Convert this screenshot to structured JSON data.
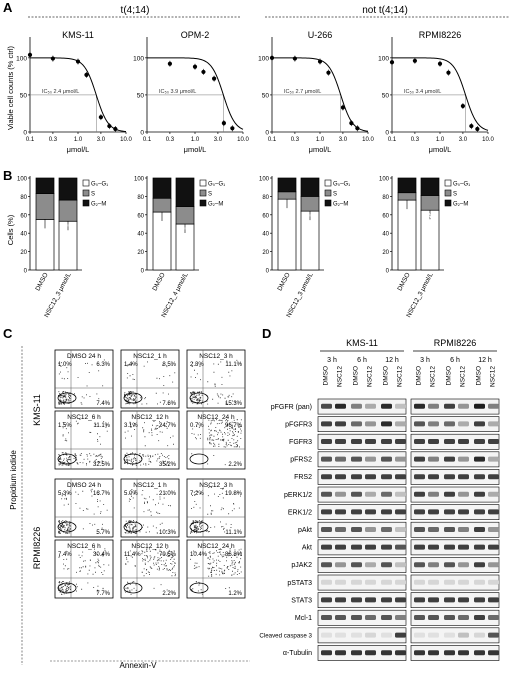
{
  "panel_letters": [
    "A",
    "B",
    "C",
    "D"
  ],
  "group_headers": {
    "left": "t(4;14)",
    "right": "not t(4;14)"
  },
  "panelA": {
    "ylabel": "Viable cell counts (% ctrl)",
    "xlabel": "μmol/L",
    "yticks": [
      "0",
      "50",
      "100"
    ],
    "xticks": [
      "0.1",
      "0.3",
      "1.0",
      "3.0",
      "10.0"
    ]
  },
  "panelB": {
    "ylabel": "Cells (%)",
    "yticks": [
      "0",
      "20",
      "40",
      "60",
      "80",
      "100"
    ],
    "legend": [
      "G₀–G₁",
      "S",
      "G₂–M"
    ],
    "colors": {
      "g0g1": "#ffffff",
      "s": "#8c8c8c",
      "g2m": "#111111"
    }
  },
  "panelC": {
    "xlabel": "Annexin-V",
    "ylabel": "Propidium iodide",
    "row_labels": [
      "KMS-11",
      "RPMI8226"
    ],
    "plots": [
      {
        "title": "DMSO 24 h",
        "ul": "1.0%",
        "ur": "6.3%",
        "lr": "7.4%"
      },
      {
        "title": "NSC12_1 h",
        "ul": "1.4%",
        "ur": "8.5%",
        "lr": "7.6%"
      },
      {
        "title": "NSC12_3 h",
        "ul": "2.3%",
        "ur": "11.1%",
        "lr": "15.3%"
      },
      {
        "title": "NSC12_6 h",
        "ul": "1.5%",
        "ur": "11.1%",
        "lr": "32.5%"
      },
      {
        "title": "NSC12_12 h",
        "ul": "3.1%",
        "ur": "24.7%",
        "lr": "35.2%"
      },
      {
        "title": "NSC12_24 h",
        "ul": "0.7%",
        "ur": "96.7%",
        "lr": "2.2%"
      },
      {
        "title": "DMSO 24 h",
        "ul": "5.3%",
        "ur": "16.7%",
        "lr": "5.7%"
      },
      {
        "title": "NSC12_1 h",
        "ul": "5.0%",
        "ur": "21.0%",
        "lr": "10.3%"
      },
      {
        "title": "NSC12_3 h",
        "ul": "7.2%",
        "ur": "19.8%",
        "lr": "11.1%"
      },
      {
        "title": "NSC12_6 h",
        "ul": "7.4%",
        "ur": "30.4%",
        "lr": "7.7%"
      },
      {
        "title": "NSC12_12 h",
        "ul": "11.4%",
        "ur": "79.5%",
        "lr": "2.2%"
      },
      {
        "title": "NSC12_24 h",
        "ul": "10.4%",
        "ur": "86.8%",
        "lr": "1.2%"
      }
    ]
  },
  "panelD": {
    "cell_lines": [
      "KMS-11",
      "RPMI8226"
    ],
    "times": [
      "3 h",
      "6 h",
      "12 h"
    ],
    "lanes": [
      "DMSO",
      "NSC12"
    ],
    "proteins": [
      "pFGFR (pan)",
      "pFGFR3",
      "FGFR3",
      "pFRS2",
      "FRS2",
      "pERK1/2",
      "ERK1/2",
      "pAkt",
      "Akt",
      "pJAK2",
      "pSTAT3",
      "STAT3",
      "Mcl-1",
      "Cleaved caspase 3",
      "α-Tubulin"
    ]
  },
  "chart_data": [
    {
      "type": "line",
      "title": "KMS-11",
      "xlabel": "μmol/L",
      "ylabel": "Viable cell counts (% ctrl)",
      "x_scale": "log",
      "xlim": [
        0.1,
        10
      ],
      "ylim": [
        0,
        120
      ],
      "x": [
        0.1,
        0.3,
        1.0,
        1.5,
        3.0,
        4.5,
        6.0
      ],
      "y": [
        104,
        99,
        95,
        77,
        20,
        8,
        4
      ],
      "ic50_text": "IC₅₀ 2.4 μmol/L",
      "ic50": 2.4
    },
    {
      "type": "line",
      "title": "OPM-2",
      "xlabel": "μmol/L",
      "ylabel": "",
      "x_scale": "log",
      "xlim": [
        0.1,
        10
      ],
      "ylim": [
        0,
        120
      ],
      "x": [
        0.3,
        1.0,
        1.5,
        2.5,
        4.0,
        6.0
      ],
      "y": [
        92,
        88,
        81,
        72,
        12,
        5
      ],
      "ic50_text": "IC₅₀ 3.9 μmol/L",
      "ic50": 3.9
    },
    {
      "type": "line",
      "title": "U-266",
      "xlabel": "μmol/L",
      "ylabel": "",
      "x_scale": "log",
      "xlim": [
        0.1,
        10
      ],
      "ylim": [
        0,
        120
      ],
      "x": [
        0.1,
        0.3,
        1.0,
        1.5,
        3.0,
        4.5,
        6.0
      ],
      "y": [
        100,
        99,
        95,
        80,
        33,
        12,
        5
      ],
      "ic50_text": "IC₅₀ 2.7 μmol/L",
      "ic50": 2.7
    },
    {
      "type": "line",
      "title": "RPMI8226",
      "xlabel": "μmol/L",
      "ylabel": "",
      "x_scale": "log",
      "xlim": [
        0.1,
        10
      ],
      "ylim": [
        0,
        120
      ],
      "x": [
        0.1,
        0.3,
        1.0,
        1.5,
        3.0,
        4.5,
        6.0
      ],
      "y": [
        94,
        96,
        92,
        80,
        35,
        8,
        4
      ],
      "ic50_text": "IC₅₀ 3.4 μmol/L",
      "ic50": 3.4
    },
    {
      "type": "bar",
      "stacked": true,
      "title": "KMS-11",
      "categories": [
        "DMSO",
        "NSC12_3 μmol/L"
      ],
      "series": [
        {
          "name": "G₀–G₁",
          "values": [
            55,
            53
          ]
        },
        {
          "name": "S",
          "values": [
            28,
            23
          ]
        },
        {
          "name": "G₂–M",
          "values": [
            17,
            24
          ]
        }
      ],
      "marks": [
        "",
        "**"
      ]
    },
    {
      "type": "bar",
      "stacked": true,
      "title": "OPM-2",
      "categories": [
        "DMSO",
        "NSC12_4 μmol/L"
      ],
      "series": [
        {
          "name": "G₀–G₁",
          "values": [
            63,
            50
          ]
        },
        {
          "name": "S",
          "values": [
            15,
            19
          ]
        },
        {
          "name": "G₂–M",
          "values": [
            22,
            31
          ]
        }
      ],
      "marks": [
        "",
        "**"
      ]
    },
    {
      "type": "bar",
      "stacked": true,
      "title": "U-266",
      "categories": [
        "DMSO",
        "NSC12_3 μmol/L"
      ],
      "series": [
        {
          "name": "G₀–G₁",
          "values": [
            77,
            64
          ]
        },
        {
          "name": "S",
          "values": [
            8,
            16
          ]
        },
        {
          "name": "G₂–M",
          "values": [
            15,
            20
          ]
        }
      ],
      "marks": [
        "",
        "**"
      ]
    },
    {
      "type": "bar",
      "stacked": true,
      "title": "RPMI8226",
      "categories": [
        "DMSO",
        "NSC12_3 μmol/L"
      ],
      "series": [
        {
          "name": "G₀–G₁",
          "values": [
            76,
            65
          ]
        },
        {
          "name": "S",
          "values": [
            8,
            16
          ]
        },
        {
          "name": "G₂–M",
          "values": [
            16,
            19
          ]
        }
      ],
      "marks": [
        "",
        "#"
      ]
    }
  ]
}
